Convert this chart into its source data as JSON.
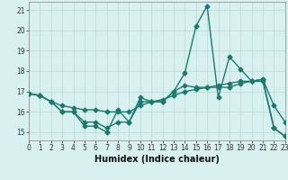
{
  "x": [
    0,
    1,
    2,
    3,
    4,
    5,
    6,
    7,
    8,
    9,
    10,
    11,
    12,
    13,
    14,
    15,
    16,
    17,
    18,
    19,
    20,
    21,
    22,
    23
  ],
  "line1": [
    16.9,
    16.8,
    16.5,
    16.0,
    16.0,
    15.3,
    15.3,
    15.0,
    16.1,
    15.5,
    16.7,
    16.5,
    16.5,
    17.0,
    17.9,
    20.2,
    21.2,
    16.7,
    18.7,
    18.1,
    17.5,
    17.6,
    16.3,
    15.5
  ],
  "line2": [
    16.9,
    16.8,
    16.5,
    16.0,
    16.0,
    15.5,
    15.5,
    15.2,
    15.5,
    15.5,
    16.5,
    16.5,
    16.5,
    17.0,
    17.3,
    17.2,
    17.2,
    17.2,
    17.2,
    17.4,
    17.5,
    17.6,
    15.2,
    14.8
  ],
  "line3": [
    16.9,
    16.8,
    16.5,
    16.3,
    16.2,
    16.1,
    16.1,
    16.0,
    16.0,
    16.0,
    16.3,
    16.5,
    16.6,
    16.8,
    17.0,
    17.1,
    17.2,
    17.3,
    17.4,
    17.5,
    17.5,
    17.5,
    15.2,
    14.8
  ],
  "line_color": "#1a7a6e",
  "bg_color": "#d8f0f0",
  "grid_color": "#b8d8d8",
  "xlabel": "Humidex (Indice chaleur)",
  "xlim": [
    0,
    23
  ],
  "ylim": [
    14.6,
    21.4
  ],
  "yticks": [
    15,
    16,
    17,
    18,
    19,
    20,
    21
  ],
  "xticks": [
    0,
    1,
    2,
    3,
    4,
    5,
    6,
    7,
    8,
    9,
    10,
    11,
    12,
    13,
    14,
    15,
    16,
    17,
    18,
    19,
    20,
    21,
    22,
    23
  ],
  "marker": "D",
  "markersize": 2.5,
  "linewidth": 1.0,
  "tick_fontsize": 5.5,
  "xlabel_fontsize": 7.0
}
